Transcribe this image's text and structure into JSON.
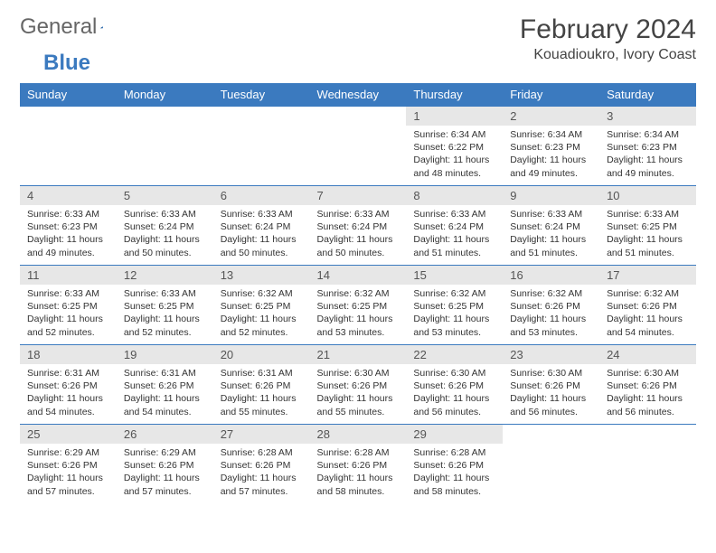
{
  "logo": {
    "text1": "General",
    "text2": "Blue"
  },
  "title": "February 2024",
  "location": "Kouadioukro, Ivory Coast",
  "colors": {
    "header_bg": "#3b7abf",
    "header_text": "#ffffff",
    "daynum_bg": "#e7e7e7",
    "border": "#3b7abf",
    "text": "#333333"
  },
  "weekdays": [
    "Sunday",
    "Monday",
    "Tuesday",
    "Wednesday",
    "Thursday",
    "Friday",
    "Saturday"
  ],
  "weeks": [
    [
      {
        "n": "",
        "sr": "",
        "ss": "",
        "dl": ""
      },
      {
        "n": "",
        "sr": "",
        "ss": "",
        "dl": ""
      },
      {
        "n": "",
        "sr": "",
        "ss": "",
        "dl": ""
      },
      {
        "n": "",
        "sr": "",
        "ss": "",
        "dl": ""
      },
      {
        "n": "1",
        "sr": "Sunrise: 6:34 AM",
        "ss": "Sunset: 6:22 PM",
        "dl": "Daylight: 11 hours and 48 minutes."
      },
      {
        "n": "2",
        "sr": "Sunrise: 6:34 AM",
        "ss": "Sunset: 6:23 PM",
        "dl": "Daylight: 11 hours and 49 minutes."
      },
      {
        "n": "3",
        "sr": "Sunrise: 6:34 AM",
        "ss": "Sunset: 6:23 PM",
        "dl": "Daylight: 11 hours and 49 minutes."
      }
    ],
    [
      {
        "n": "4",
        "sr": "Sunrise: 6:33 AM",
        "ss": "Sunset: 6:23 PM",
        "dl": "Daylight: 11 hours and 49 minutes."
      },
      {
        "n": "5",
        "sr": "Sunrise: 6:33 AM",
        "ss": "Sunset: 6:24 PM",
        "dl": "Daylight: 11 hours and 50 minutes."
      },
      {
        "n": "6",
        "sr": "Sunrise: 6:33 AM",
        "ss": "Sunset: 6:24 PM",
        "dl": "Daylight: 11 hours and 50 minutes."
      },
      {
        "n": "7",
        "sr": "Sunrise: 6:33 AM",
        "ss": "Sunset: 6:24 PM",
        "dl": "Daylight: 11 hours and 50 minutes."
      },
      {
        "n": "8",
        "sr": "Sunrise: 6:33 AM",
        "ss": "Sunset: 6:24 PM",
        "dl": "Daylight: 11 hours and 51 minutes."
      },
      {
        "n": "9",
        "sr": "Sunrise: 6:33 AM",
        "ss": "Sunset: 6:24 PM",
        "dl": "Daylight: 11 hours and 51 minutes."
      },
      {
        "n": "10",
        "sr": "Sunrise: 6:33 AM",
        "ss": "Sunset: 6:25 PM",
        "dl": "Daylight: 11 hours and 51 minutes."
      }
    ],
    [
      {
        "n": "11",
        "sr": "Sunrise: 6:33 AM",
        "ss": "Sunset: 6:25 PM",
        "dl": "Daylight: 11 hours and 52 minutes."
      },
      {
        "n": "12",
        "sr": "Sunrise: 6:33 AM",
        "ss": "Sunset: 6:25 PM",
        "dl": "Daylight: 11 hours and 52 minutes."
      },
      {
        "n": "13",
        "sr": "Sunrise: 6:32 AM",
        "ss": "Sunset: 6:25 PM",
        "dl": "Daylight: 11 hours and 52 minutes."
      },
      {
        "n": "14",
        "sr": "Sunrise: 6:32 AM",
        "ss": "Sunset: 6:25 PM",
        "dl": "Daylight: 11 hours and 53 minutes."
      },
      {
        "n": "15",
        "sr": "Sunrise: 6:32 AM",
        "ss": "Sunset: 6:25 PM",
        "dl": "Daylight: 11 hours and 53 minutes."
      },
      {
        "n": "16",
        "sr": "Sunrise: 6:32 AM",
        "ss": "Sunset: 6:26 PM",
        "dl": "Daylight: 11 hours and 53 minutes."
      },
      {
        "n": "17",
        "sr": "Sunrise: 6:32 AM",
        "ss": "Sunset: 6:26 PM",
        "dl": "Daylight: 11 hours and 54 minutes."
      }
    ],
    [
      {
        "n": "18",
        "sr": "Sunrise: 6:31 AM",
        "ss": "Sunset: 6:26 PM",
        "dl": "Daylight: 11 hours and 54 minutes."
      },
      {
        "n": "19",
        "sr": "Sunrise: 6:31 AM",
        "ss": "Sunset: 6:26 PM",
        "dl": "Daylight: 11 hours and 54 minutes."
      },
      {
        "n": "20",
        "sr": "Sunrise: 6:31 AM",
        "ss": "Sunset: 6:26 PM",
        "dl": "Daylight: 11 hours and 55 minutes."
      },
      {
        "n": "21",
        "sr": "Sunrise: 6:30 AM",
        "ss": "Sunset: 6:26 PM",
        "dl": "Daylight: 11 hours and 55 minutes."
      },
      {
        "n": "22",
        "sr": "Sunrise: 6:30 AM",
        "ss": "Sunset: 6:26 PM",
        "dl": "Daylight: 11 hours and 56 minutes."
      },
      {
        "n": "23",
        "sr": "Sunrise: 6:30 AM",
        "ss": "Sunset: 6:26 PM",
        "dl": "Daylight: 11 hours and 56 minutes."
      },
      {
        "n": "24",
        "sr": "Sunrise: 6:30 AM",
        "ss": "Sunset: 6:26 PM",
        "dl": "Daylight: 11 hours and 56 minutes."
      }
    ],
    [
      {
        "n": "25",
        "sr": "Sunrise: 6:29 AM",
        "ss": "Sunset: 6:26 PM",
        "dl": "Daylight: 11 hours and 57 minutes."
      },
      {
        "n": "26",
        "sr": "Sunrise: 6:29 AM",
        "ss": "Sunset: 6:26 PM",
        "dl": "Daylight: 11 hours and 57 minutes."
      },
      {
        "n": "27",
        "sr": "Sunrise: 6:28 AM",
        "ss": "Sunset: 6:26 PM",
        "dl": "Daylight: 11 hours and 57 minutes."
      },
      {
        "n": "28",
        "sr": "Sunrise: 6:28 AM",
        "ss": "Sunset: 6:26 PM",
        "dl": "Daylight: 11 hours and 58 minutes."
      },
      {
        "n": "29",
        "sr": "Sunrise: 6:28 AM",
        "ss": "Sunset: 6:26 PM",
        "dl": "Daylight: 11 hours and 58 minutes."
      },
      {
        "n": "",
        "sr": "",
        "ss": "",
        "dl": ""
      },
      {
        "n": "",
        "sr": "",
        "ss": "",
        "dl": ""
      }
    ]
  ]
}
